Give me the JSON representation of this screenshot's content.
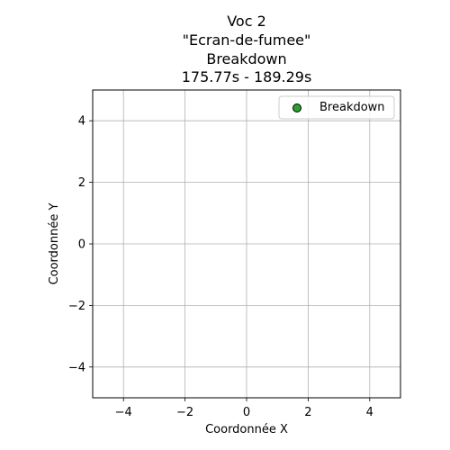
{
  "chart_data": {
    "type": "scatter",
    "title_lines": [
      "Voc 2",
      "\"Ecran-de-fumee\"",
      "Breakdown",
      "175.77s - 189.29s"
    ],
    "xlabel": "Coordonnée X",
    "ylabel": "Coordonnée Y",
    "xlim": [
      -5,
      5
    ],
    "ylim": [
      -5,
      5
    ],
    "xticks": [
      -4,
      -2,
      0,
      2,
      4
    ],
    "yticks": [
      -4,
      -2,
      0,
      2,
      4
    ],
    "xtick_labels": [
      "−4",
      "−2",
      "0",
      "2",
      "4"
    ],
    "ytick_labels": [
      "−4",
      "−2",
      "0",
      "2",
      "4"
    ],
    "grid": true,
    "legend_position": "top-right",
    "series": [
      {
        "name": "Breakdown",
        "color": "#2ca02c",
        "edge_color": "#000000",
        "points": []
      }
    ]
  }
}
